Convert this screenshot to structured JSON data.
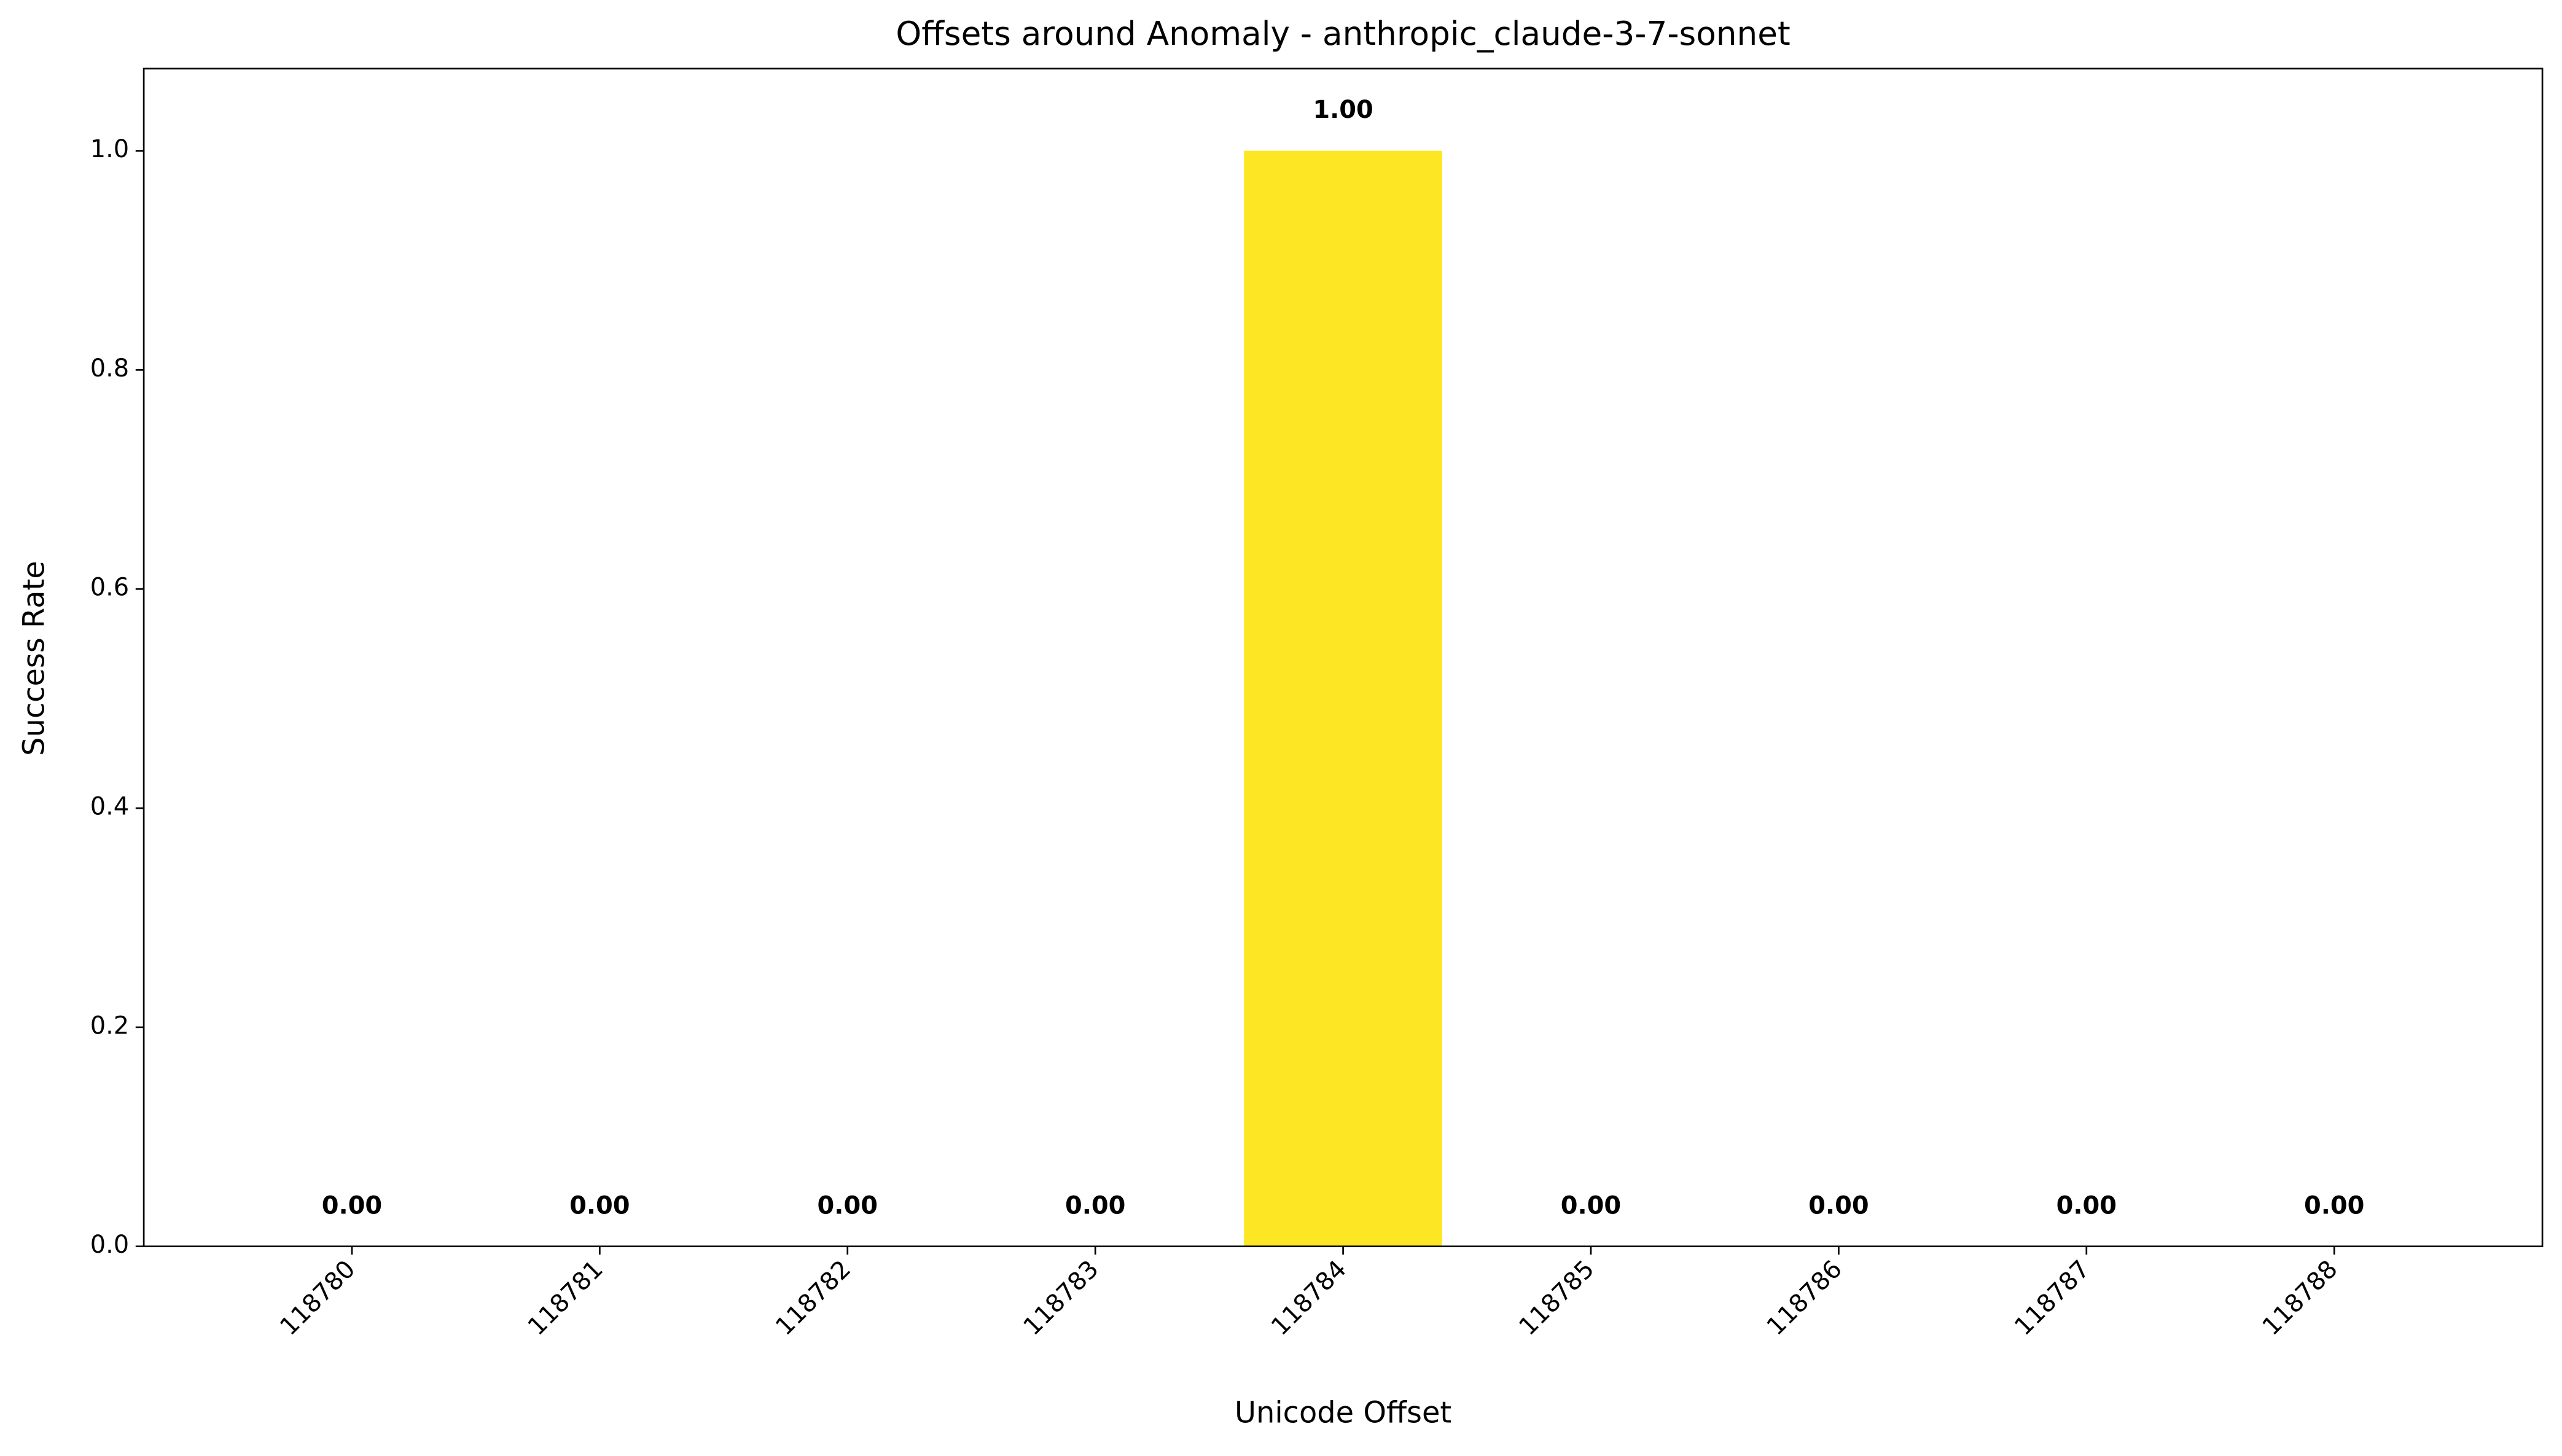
{
  "chart_data": {
    "type": "bar",
    "title": "Offsets around Anomaly - anthropic_claude-3-7-sonnet",
    "x_label": "Unicode Offset",
    "y_label": "Success Rate",
    "categories": [
      "118780",
      "118781",
      "118782",
      "118783",
      "118784",
      "118785",
      "118786",
      "118787",
      "118788"
    ],
    "values": [
      0,
      0,
      0,
      0,
      1,
      0,
      0,
      0,
      0
    ],
    "value_labels": [
      "0.00",
      "0.00",
      "0.00",
      "0.00",
      "1.00",
      "0.00",
      "0.00",
      "0.00",
      "0.00"
    ],
    "color": "#fde725",
    "ylim": [
      0,
      1.075
    ],
    "yticks": [
      {
        "value": 0,
        "label": "0.0"
      },
      0.2,
      0.4,
      0.6,
      0.8,
      {
        "value": 1,
        "label": "1.0"
      }
    ],
    "grid": false
  }
}
